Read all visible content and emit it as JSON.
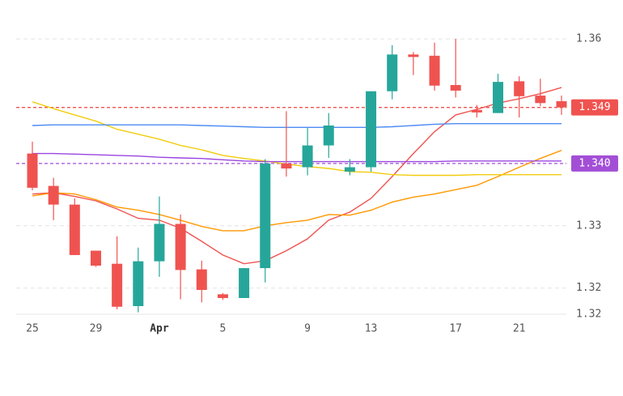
{
  "chart_data": {
    "type": "candlestick",
    "categories": [
      "25",
      null,
      null,
      "29",
      null,
      null,
      "Apr",
      null,
      null,
      "5",
      null,
      null,
      null,
      "9",
      null,
      null,
      "13",
      null,
      null,
      null,
      "17",
      null,
      null,
      "21",
      null,
      null
    ],
    "open": [
      1.3416,
      1.3364,
      1.3334,
      1.326,
      1.3239,
      1.3171,
      1.3243,
      1.3303,
      1.323,
      1.319,
      1.3184,
      1.3232,
      1.34,
      1.3394,
      1.3429,
      1.3387,
      1.3394,
      1.3516,
      1.3575,
      1.3573,
      1.3526,
      1.3486,
      1.3481,
      1.3532,
      1.3509,
      1.35
    ],
    "high": [
      1.3435,
      1.3377,
      1.3344,
      1.326,
      1.3283,
      1.3265,
      1.3347,
      1.3318,
      1.3244,
      1.3192,
      1.3232,
      1.3407,
      1.3484,
      1.3457,
      1.3481,
      1.3407,
      1.3516,
      1.359,
      1.3579,
      1.3594,
      1.36,
      1.3494,
      1.3544,
      1.354,
      1.3536,
      1.3509
    ],
    "low": [
      1.3357,
      1.3309,
      1.3253,
      1.3234,
      1.3166,
      1.3161,
      1.3218,
      1.3182,
      1.3177,
      1.3181,
      1.3184,
      1.3209,
      1.3379,
      1.3381,
      1.3409,
      1.3381,
      1.3387,
      1.3503,
      1.3542,
      1.3517,
      1.3506,
      1.3474,
      1.3481,
      1.3474,
      1.3492,
      1.3478
    ],
    "close": [
      1.3361,
      1.3334,
      1.3253,
      1.3236,
      1.317,
      1.3243,
      1.3303,
      1.3229,
      1.3197,
      1.3184,
      1.3232,
      1.34,
      1.3392,
      1.3429,
      1.3461,
      1.3394,
      1.3516,
      1.3575,
      1.3571,
      1.3525,
      1.3517,
      1.3482,
      1.3531,
      1.3508,
      1.3497,
      1.349
    ],
    "up_color": "#26a69a",
    "down_color": "#ef5350",
    "series": [
      {
        "color": "#ef5350",
        "values": [
          1.3351,
          1.3353,
          1.3347,
          1.334,
          1.3327,
          1.3312,
          1.3309,
          1.3296,
          1.3275,
          1.3253,
          1.3239,
          1.3244,
          1.326,
          1.3279,
          1.3309,
          1.3322,
          1.3344,
          1.3379,
          1.3416,
          1.3451,
          1.3478,
          1.3487,
          1.3497,
          1.3504,
          1.3512,
          1.3522
        ]
      },
      {
        "color": "#ff9800",
        "values": [
          1.3348,
          1.3353,
          1.3351,
          1.3342,
          1.333,
          1.3325,
          1.3318,
          1.3309,
          1.3299,
          1.3292,
          1.3292,
          1.33,
          1.3305,
          1.3309,
          1.3318,
          1.3317,
          1.3325,
          1.3338,
          1.3346,
          1.3351,
          1.3358,
          1.3365,
          1.3379,
          1.3394,
          1.3408,
          1.3421
        ]
      },
      {
        "color": "#f2cc0c",
        "values": [
          1.3499,
          1.3488,
          1.3478,
          1.3468,
          1.3455,
          1.3447,
          1.3439,
          1.3429,
          1.3422,
          1.3413,
          1.3408,
          1.3404,
          1.3399,
          1.3395,
          1.3392,
          1.3387,
          1.3386,
          1.3382,
          1.3381,
          1.3381,
          1.3381,
          1.3382,
          1.3382,
          1.3382,
          1.3382,
          1.3382
        ]
      },
      {
        "color": "#4c8bf5",
        "values": [
          1.3461,
          1.3462,
          1.3462,
          1.3462,
          1.3462,
          1.3462,
          1.3462,
          1.3462,
          1.3461,
          1.346,
          1.3459,
          1.3458,
          1.3458,
          1.3458,
          1.3458,
          1.3458,
          1.3458,
          1.3459,
          1.3461,
          1.3463,
          1.3464,
          1.3464,
          1.3464,
          1.3464,
          1.3464,
          1.3464
        ]
      },
      {
        "color": "#9b45e0",
        "values": [
          1.3416,
          1.3416,
          1.3415,
          1.3414,
          1.3413,
          1.3412,
          1.341,
          1.3409,
          1.3408,
          1.3406,
          1.3404,
          1.3403,
          1.3403,
          1.3403,
          1.3403,
          1.3403,
          1.3403,
          1.3403,
          1.3403,
          1.3403,
          1.3404,
          1.3404,
          1.3404,
          1.3404,
          1.3404,
          1.3404
        ]
      }
    ],
    "price_lines": [
      {
        "value": 1.349,
        "label": "1.349",
        "color": "#ef5350"
      },
      {
        "value": 1.34,
        "label": "1.340",
        "color": "#a24fd6"
      }
    ],
    "ylim": [
      1.3158,
      1.3643
    ],
    "yticks": [
      {
        "value": 1.3158,
        "label": "1.32"
      },
      1.32,
      1.33,
      1.36
    ],
    "grid": true
  }
}
